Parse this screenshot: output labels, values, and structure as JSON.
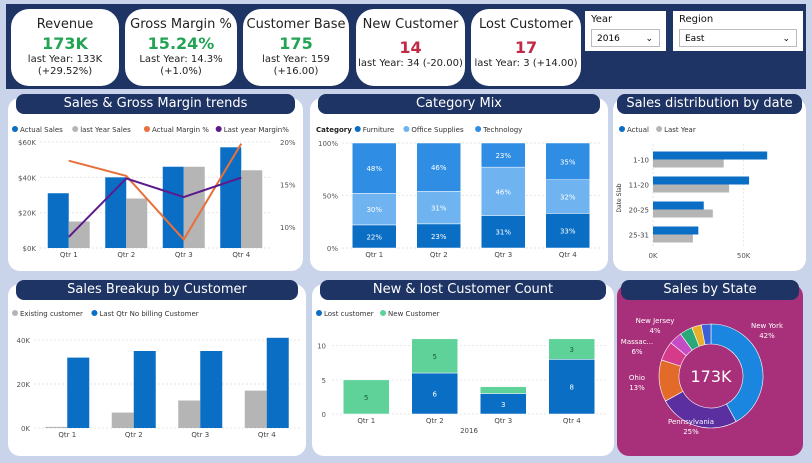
{
  "kpis": {
    "revenue": {
      "title": "Revenue",
      "value": "173K",
      "last": "last Year: 133K",
      "change": "(+29.52%)"
    },
    "gross_margin": {
      "title": "Gross Margin %",
      "value": "15.24%",
      "last": "Last Year: 14.3%",
      "change": "(+1.0%)"
    },
    "customer_base": {
      "title": "Customer Base",
      "value": "175",
      "last": "last Year: 159",
      "change": "(+16.00)"
    },
    "new_customer": {
      "title": "New Customer",
      "value": "14",
      "last": "last Year: 34 (-20.00)"
    },
    "lost_customer": {
      "title": "Lost Customer",
      "value": "17",
      "last": "last Year: 3 (+14.00)"
    }
  },
  "slicers": {
    "year": {
      "label": "Year",
      "value": "2016"
    },
    "region": {
      "label": "Region",
      "value": "East"
    }
  },
  "colors": {
    "navy": "#1e3464",
    "blue": "#0b6ec5",
    "gray": "#b5b5b5",
    "orange": "#e8703a",
    "purple": "#5d1a8c",
    "light_blue": "#2f8de4",
    "lighter_blue": "#6fb3f0",
    "mint": "#5fd29a",
    "magenta": "#a8307a"
  },
  "chart_data": [
    {
      "id": "sales_gm",
      "type": "bar",
      "title": "Sales & Gross Margin trends",
      "categories": [
        "Qtr 1",
        "Qtr 2",
        "Qtr 3",
        "Qtr 4"
      ],
      "series": [
        {
          "name": "Actual Sales",
          "values": [
            31,
            40,
            46,
            57
          ]
        },
        {
          "name": "last Year Sales",
          "values": [
            15,
            28,
            46,
            44
          ]
        },
        {
          "name": "Actual Margin %",
          "values": [
            17.8,
            16.0,
            8.5,
            19.8
          ]
        },
        {
          "name": "Last year Margin%",
          "values": [
            8.8,
            15.7,
            13.5,
            15.8
          ]
        }
      ],
      "y_ticks": [
        "$0K",
        "$20K",
        "$40K",
        "$60K"
      ],
      "y2_ticks": [
        "10%",
        "15%",
        "20%"
      ],
      "ylim": [
        0,
        60
      ],
      "y2lim": [
        7.5,
        20
      ]
    },
    {
      "id": "category_mix",
      "type": "bar",
      "title": "Category Mix",
      "legend_title": "Category",
      "categories": [
        "Qtr 1",
        "Qtr 2",
        "Qtr 3",
        "Qtr 4"
      ],
      "series": [
        {
          "name": "Furniture",
          "values": [
            22,
            23,
            31,
            33
          ],
          "labels": [
            "22%",
            "23%",
            "31%",
            "33%"
          ]
        },
        {
          "name": "Office Supplies",
          "values": [
            30,
            31,
            46,
            32
          ],
          "labels": [
            "30%",
            "31%",
            "46%",
            "32%"
          ]
        },
        {
          "name": "Technology",
          "values": [
            48,
            46,
            23,
            35
          ],
          "labels": [
            "48%",
            "46%",
            "23%",
            "35%"
          ]
        }
      ],
      "y_ticks": [
        "0%",
        "50%",
        "100%"
      ],
      "ylim": [
        0,
        100
      ]
    },
    {
      "id": "sales_by_date",
      "type": "bar",
      "title": "Sales distribution by date",
      "ylabel": "Date Slab",
      "categories": [
        "1-10",
        "11-20",
        "20-25",
        "25-31"
      ],
      "series": [
        {
          "name": "Actual",
          "values": [
            63,
            53,
            28,
            25
          ]
        },
        {
          "name": "Last Year",
          "values": [
            39,
            42,
            33,
            22
          ]
        }
      ],
      "x_ticks": [
        "0K",
        "50K"
      ],
      "xlim": [
        0,
        80
      ]
    },
    {
      "id": "sales_breakup",
      "type": "bar",
      "title": "Sales Breakup by Customer",
      "categories": [
        "Qtr 1",
        "Qtr 2",
        "Qtr 3",
        "Qtr 4"
      ],
      "series": [
        {
          "name": "Existing customer",
          "values": [
            0.5,
            7,
            12.5,
            17
          ]
        },
        {
          "name": "Last Qtr No billing Customer",
          "values": [
            32,
            35,
            35,
            41
          ]
        }
      ],
      "y_ticks": [
        "0K",
        "20K",
        "40K"
      ],
      "ylim": [
        0,
        45
      ]
    },
    {
      "id": "new_lost",
      "type": "bar",
      "title": "New & lost Customer Count",
      "categories": [
        "Qtr 1",
        "Qtr 2",
        "Qtr 3",
        "Qtr 4"
      ],
      "x_group": "2016",
      "series": [
        {
          "name": "Lost customer",
          "values": [
            0,
            6,
            3,
            8
          ],
          "labels": [
            "",
            "6",
            "3",
            "8"
          ]
        },
        {
          "name": "New Customer",
          "values": [
            5,
            5,
            1,
            3
          ],
          "labels": [
            "5",
            "5",
            "",
            "3"
          ]
        }
      ],
      "y_ticks": [
        "0",
        "5",
        "10"
      ],
      "ylim": [
        0,
        12
      ]
    },
    {
      "id": "sales_by_state",
      "type": "pie",
      "title": "Sales by State",
      "center_label": "173K",
      "slices": [
        {
          "name": "New York",
          "value": 42,
          "label": "New York",
          "pct": "42%"
        },
        {
          "name": "Pennsylvania",
          "value": 25,
          "label": "Pennsylvania",
          "pct": "25%"
        },
        {
          "name": "Ohio",
          "value": 13,
          "label": "Ohio",
          "pct": "13%"
        },
        {
          "name": "Massachusetts",
          "value": 6,
          "label": "Massac...",
          "pct": "6%"
        },
        {
          "name": "New Jersey",
          "value": 4,
          "label": "New Jersey",
          "pct": "4%"
        },
        {
          "name": "Other 1",
          "value": 4,
          "label": "",
          "pct": ""
        },
        {
          "name": "Other 2",
          "value": 3,
          "label": "",
          "pct": ""
        },
        {
          "name": "Other 3",
          "value": 3,
          "label": "",
          "pct": ""
        }
      ]
    }
  ]
}
